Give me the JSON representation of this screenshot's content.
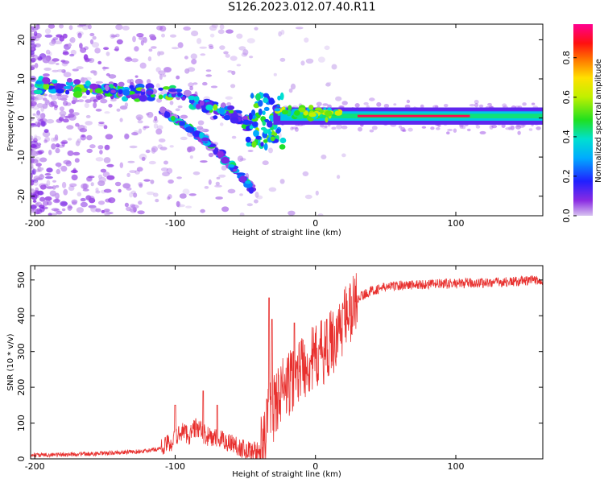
{
  "title": "S126.2023.012.07.40.R11",
  "chart_data": [
    {
      "type": "heatmap",
      "xlabel": "Height of straight line (km)",
      "ylabel": "Frequency (Hz)",
      "xlim": [
        -203,
        162
      ],
      "ylim": [
        -25,
        24
      ],
      "xticks": [
        -200,
        -100,
        0,
        100
      ],
      "yticks": [
        -20,
        -10,
        0,
        10,
        20
      ],
      "colorbar": {
        "label": "Normalized spectral amplitude",
        "range": [
          0.0,
          0.97
        ],
        "ticks": [
          0.0,
          0.2,
          0.4,
          0.6,
          0.8
        ],
        "colormap": "rainbow (purple-blue-cyan-green-yellow-orange-red-magenta)"
      },
      "features": [
        {
          "name": "carrier",
          "x": [
            -30,
            162
          ],
          "y": [
            0.5,
            0.5
          ],
          "peak_amplitude": 0.95
        },
        {
          "name": "upper branch",
          "x": [
            -200,
            -100,
            -60,
            -40
          ],
          "y": [
            8.5,
            6,
            1,
            -3
          ],
          "peak_amplitude": 0.6
        },
        {
          "name": "lower branch",
          "x": [
            -110,
            -80,
            -55,
            -45
          ],
          "y": [
            2,
            -5,
            -14,
            -18
          ],
          "peak_amplitude": 0.5
        }
      ]
    },
    {
      "type": "line",
      "xlabel": "Height of straight line (km)",
      "ylabel": "SNR (10 * v/v)",
      "xlim": [
        -203,
        162
      ],
      "ylim": [
        0,
        540
      ],
      "xticks": [
        -200,
        -100,
        0,
        100
      ],
      "yticks": [
        0,
        100,
        200,
        300,
        400,
        500
      ],
      "color": "#e8302e",
      "x": [
        -203,
        -180,
        -150,
        -120,
        -110,
        -100,
        -95,
        -90,
        -85,
        -80,
        -75,
        -70,
        -60,
        -50,
        -40,
        -36,
        -34,
        -32,
        -30,
        -25,
        -20,
        -15,
        -10,
        -5,
        0,
        5,
        10,
        15,
        20,
        25,
        30,
        40,
        50,
        60,
        80,
        100,
        120,
        140,
        162
      ],
      "y": [
        10,
        12,
        15,
        22,
        30,
        55,
        80,
        65,
        90,
        70,
        60,
        55,
        45,
        25,
        20,
        40,
        130,
        150,
        140,
        190,
        200,
        230,
        260,
        270,
        280,
        300,
        320,
        340,
        390,
        410,
        450,
        470,
        480,
        485,
        488,
        490,
        492,
        495,
        500
      ],
      "spikes": [
        {
          "x": -100,
          "y": 150
        },
        {
          "x": -80,
          "y": 190
        },
        {
          "x": -70,
          "y": 150
        },
        {
          "x": -33,
          "y": 450
        },
        {
          "x": -31,
          "y": 390
        },
        {
          "x": -15,
          "y": 380
        },
        {
          "x": 8,
          "y": 390
        },
        {
          "x": 20,
          "y": 420
        }
      ]
    }
  ]
}
